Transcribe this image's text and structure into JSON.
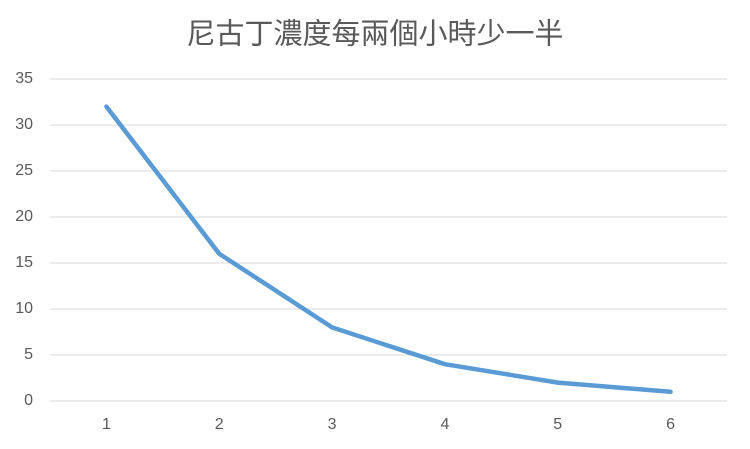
{
  "chart_data": {
    "type": "line",
    "title": "尼古丁濃度每兩個小時少一半",
    "categories": [
      "1",
      "2",
      "3",
      "4",
      "5",
      "6"
    ],
    "values": [
      32,
      16,
      8,
      4,
      2,
      1
    ],
    "color": "#5b9bd5",
    "ylim": [
      0,
      35
    ],
    "yticks": [
      0,
      5,
      10,
      15,
      20,
      25,
      30,
      35
    ],
    "grid": true
  }
}
